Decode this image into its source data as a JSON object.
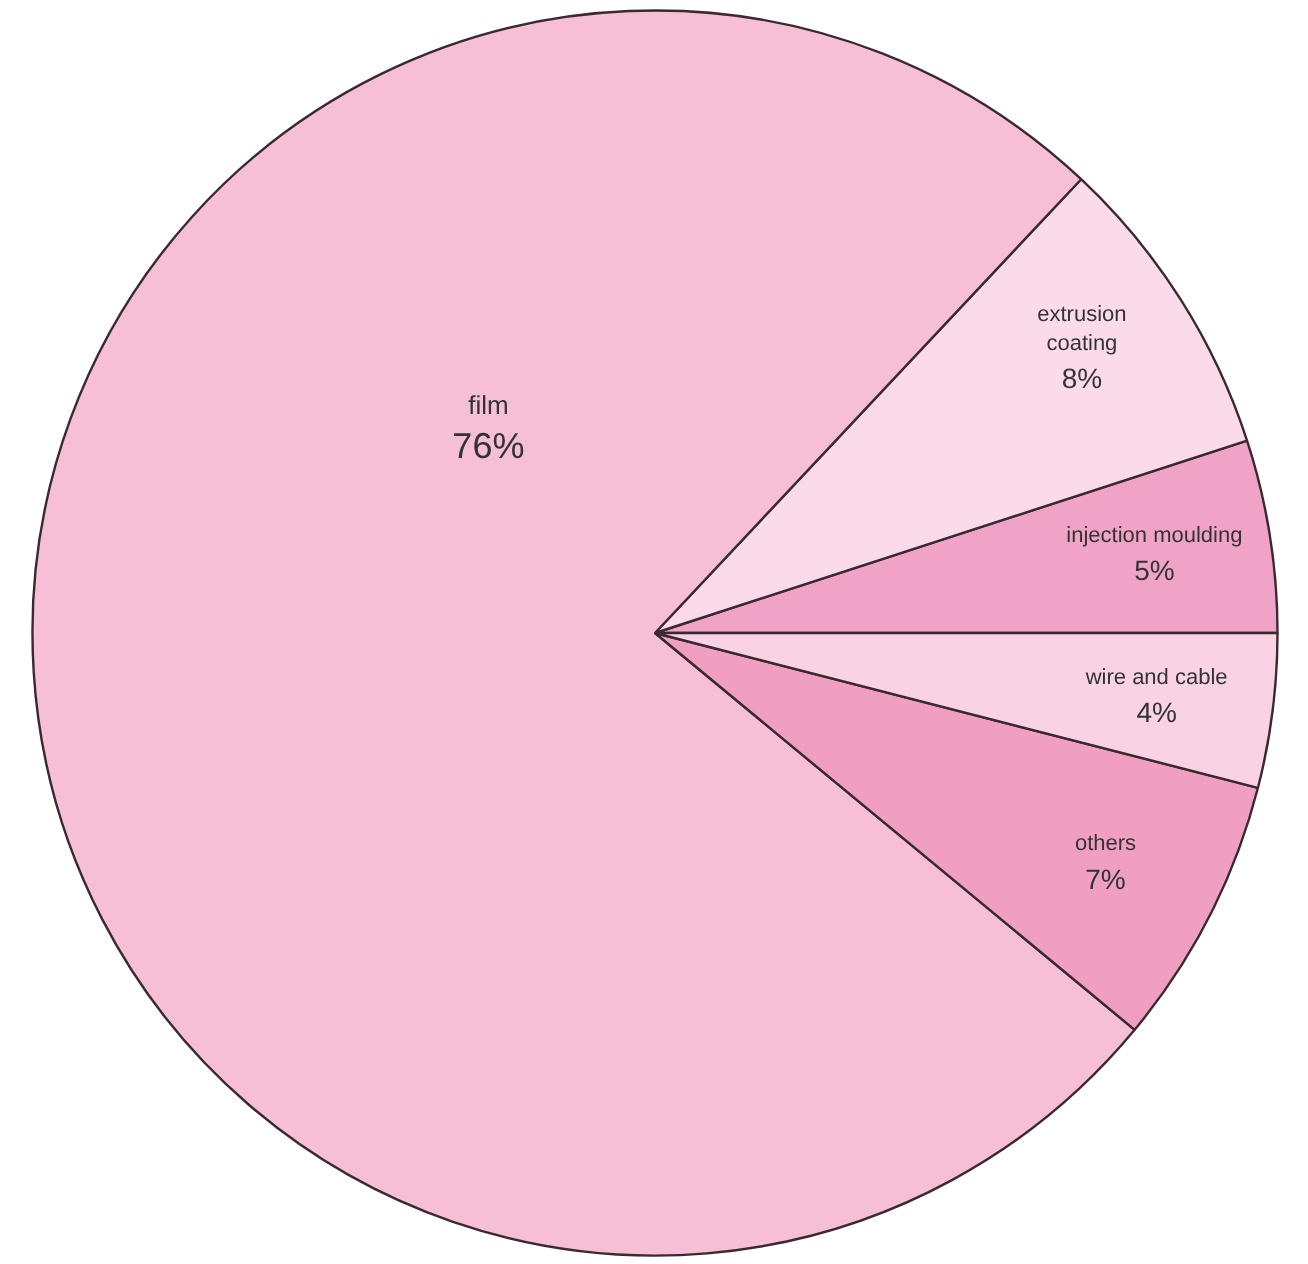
{
  "chart_data": {
    "type": "pie",
    "categories": [
      "injection moulding",
      "extrusion coating",
      "film",
      "others",
      "wire and cable"
    ],
    "values": [
      5,
      8,
      76,
      7,
      4
    ],
    "value_labels": [
      "5%",
      "8%",
      "76%",
      "7%",
      "4%"
    ],
    "colors": [
      "#f0a3c6",
      "#fbdbe9",
      "#f6bfd6",
      "#f09fc3",
      "#f9d3e4"
    ]
  }
}
